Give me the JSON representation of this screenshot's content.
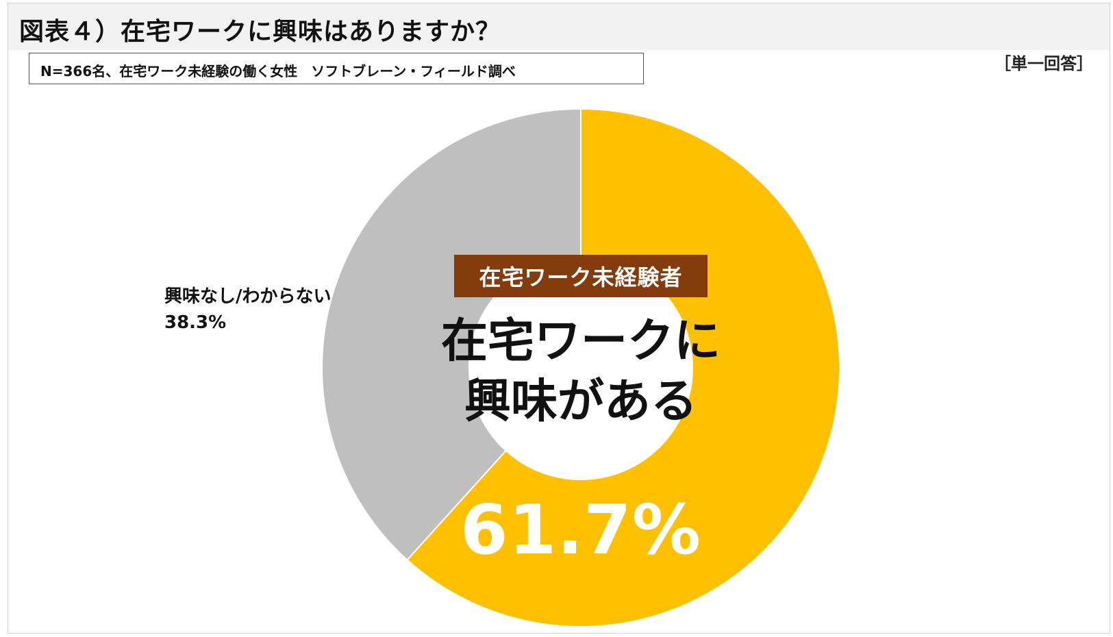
{
  "header": {
    "title": "図表４）在宅ワークに興味はありますか？",
    "note": "N=366名、在宅ワーク未経験の働く女性　ソフトブレーン・フィールド調べ",
    "answer_type": "［単一回答］"
  },
  "center": {
    "badge": "在宅ワーク未経験者",
    "line1": "在宅ワークに",
    "line2": "興味がある"
  },
  "chart_data": {
    "type": "pie",
    "donut": true,
    "start_angle_deg": 0,
    "direction": "clockwise",
    "slices": [
      {
        "label": "在宅ワークに興味がある",
        "value": 61.7,
        "value_text": "61.7%",
        "color": "#ffc000"
      },
      {
        "label": "興味なし/わからない",
        "value": 38.3,
        "value_text": "38.3%",
        "color": "#bfbfbf"
      }
    ]
  }
}
